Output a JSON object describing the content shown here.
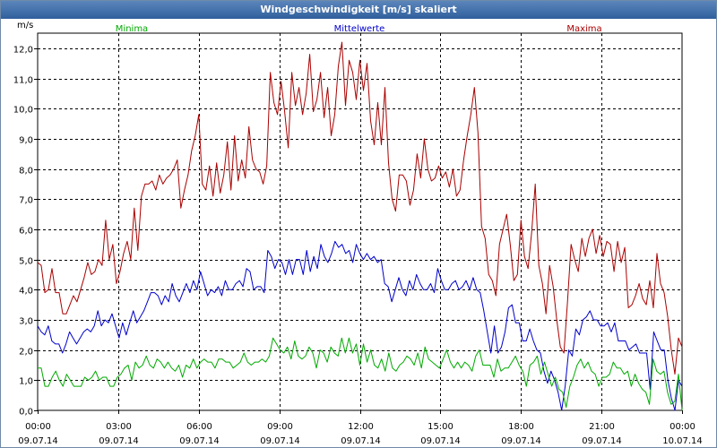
{
  "window": {
    "title": "Windgeschwindigkeit [m/s] skaliert"
  },
  "chart_data": {
    "type": "line",
    "title": "Windgeschwindigkeit [m/s] skaliert",
    "ylabel": "m/s",
    "xlabel": "",
    "ylim": [
      0,
      12.5
    ],
    "yticks": [
      0,
      1,
      2,
      3,
      4,
      5,
      6,
      7,
      8,
      9,
      10,
      11,
      12
    ],
    "ytick_labels": [
      "0,0",
      "1,0",
      "2,0",
      "3,0",
      "4,0",
      "5,0",
      "6,0",
      "7,0",
      "8,0",
      "9,0",
      "10,0",
      "11,0",
      "12,0"
    ],
    "xlim_hours": [
      0,
      24
    ],
    "xticks": [
      {
        "hour": 0,
        "time": "00:00",
        "date": "09.07.14"
      },
      {
        "hour": 3,
        "time": "03:00",
        "date": "09.07.14"
      },
      {
        "hour": 6,
        "time": "06:00",
        "date": "09.07.14"
      },
      {
        "hour": 9,
        "time": "09:00",
        "date": "09.07.14"
      },
      {
        "hour": 12,
        "time": "12:00",
        "date": "09.07.14"
      },
      {
        "hour": 15,
        "time": "15:00",
        "date": "09.07.14"
      },
      {
        "hour": 18,
        "time": "18:00",
        "date": "09.07.14"
      },
      {
        "hour": 21,
        "time": "21:00",
        "date": "09.07.14"
      },
      {
        "hour": 24,
        "time": "00:00",
        "date": "10.07.14"
      }
    ],
    "grid": true,
    "legend": [
      {
        "name": "Minima",
        "color": "#00aa00",
        "position": "top-left"
      },
      {
        "name": "Mittelwerte",
        "color": "#0000cc",
        "position": "top-center"
      },
      {
        "name": "Maxima",
        "color": "#aa0000",
        "position": "top-right"
      }
    ],
    "x_interval_hours": 0.1667,
    "series": [
      {
        "name": "Maxima",
        "color": "#aa0000",
        "values": [
          4.9,
          4.8,
          3.9,
          4.0,
          4.7,
          3.9,
          3.9,
          3.2,
          3.2,
          3.5,
          3.8,
          3.6,
          4.0,
          4.4,
          4.9,
          4.5,
          4.6,
          5.0,
          4.8,
          6.3,
          5.0,
          5.5,
          4.2,
          4.6,
          5.2,
          5.6,
          5.0,
          6.7,
          5.3,
          7.1,
          7.5,
          7.5,
          7.6,
          7.3,
          7.8,
          7.5,
          7.7,
          7.8,
          8.0,
          8.3,
          6.7,
          7.3,
          7.8,
          8.6,
          9.1,
          9.8,
          7.5,
          7.3,
          8.1,
          7.1,
          8.2,
          7.2,
          7.8,
          8.9,
          7.3,
          9.1,
          7.6,
          8.3,
          7.7,
          9.4,
          8.3,
          8.0,
          7.9,
          7.5,
          8.1,
          11.2,
          10.2,
          9.8,
          10.9,
          9.9,
          8.7,
          11.2,
          10.1,
          10.7,
          9.8,
          10.5,
          11.8,
          9.9,
          10.3,
          11.2,
          9.7,
          10.7,
          9.1,
          9.8,
          11.4,
          12.2,
          10.1,
          11.6,
          11.2,
          10.3,
          11.6,
          10.6,
          11.5,
          9.6,
          8.8,
          10.2,
          8.8,
          10.7,
          8.2,
          7.0,
          6.6,
          7.8,
          7.8,
          7.6,
          6.8,
          7.3,
          8.5,
          7.7,
          9.0,
          8.0,
          7.6,
          7.7,
          8.1,
          7.7,
          7.9,
          7.4,
          8.0,
          7.1,
          7.3,
          8.3,
          9.1,
          9.8,
          10.7,
          9.2,
          6.1,
          5.7,
          4.5,
          4.3,
          3.8,
          5.5,
          6.0,
          6.5,
          5.5,
          4.3,
          4.5,
          6.3,
          5.1,
          4.7,
          5.9,
          7.5,
          4.8,
          4.2,
          3.2,
          4.8,
          4.1,
          3.0,
          2.1,
          1.9,
          3.6,
          5.5,
          5.0,
          4.6,
          5.7,
          5.1,
          5.7,
          6.0,
          5.2,
          5.8,
          5.1,
          5.6,
          5.5,
          4.6,
          5.6,
          4.9,
          5.4,
          3.4,
          3.5,
          3.8,
          4.2,
          3.7,
          3.5,
          4.3,
          3.4,
          5.2,
          4.2,
          3.9,
          3.1,
          2.0,
          1.2,
          2.4,
          2.1
        ]
      },
      {
        "name": "Mittelwerte",
        "color": "#0000cc",
        "values": [
          2.8,
          2.6,
          2.5,
          2.8,
          2.3,
          2.2,
          2.2,
          1.9,
          2.2,
          2.6,
          2.4,
          2.2,
          2.4,
          2.6,
          2.7,
          2.6,
          2.8,
          3.3,
          2.8,
          3.0,
          2.9,
          3.2,
          2.8,
          2.4,
          2.9,
          2.5,
          2.9,
          3.3,
          2.9,
          3.1,
          3.3,
          3.6,
          3.9,
          3.9,
          3.8,
          3.5,
          3.8,
          3.6,
          4.2,
          3.8,
          3.6,
          3.9,
          4.2,
          3.9,
          4.3,
          4.0,
          4.6,
          4.2,
          3.8,
          4.0,
          3.9,
          4.1,
          3.8,
          4.3,
          4.0,
          4.0,
          4.2,
          4.3,
          4.1,
          4.7,
          4.6,
          4.0,
          4.1,
          4.1,
          3.9,
          5.3,
          5.1,
          4.7,
          5.0,
          4.9,
          4.5,
          5.0,
          4.5,
          5.0,
          5.0,
          4.5,
          5.3,
          4.6,
          5.1,
          4.7,
          5.5,
          5.1,
          4.9,
          5.2,
          5.6,
          5.4,
          5.5,
          5.2,
          5.3,
          4.9,
          5.5,
          5.2,
          5.0,
          5.2,
          5.0,
          5.1,
          4.9,
          5.0,
          4.2,
          4.1,
          3.6,
          4.0,
          4.4,
          4.0,
          3.8,
          4.3,
          4.0,
          4.5,
          4.2,
          4.0,
          4.0,
          4.2,
          3.9,
          4.7,
          4.3,
          4.0,
          4.0,
          4.2,
          4.3,
          4.0,
          4.1,
          4.3,
          4.0,
          4.4,
          4.0,
          3.9,
          3.3,
          2.6,
          1.9,
          2.8,
          1.9,
          2.1,
          2.6,
          3.4,
          3.5,
          2.9,
          2.9,
          2.3,
          2.3,
          2.7,
          2.3,
          2.0,
          1.9,
          1.3,
          0.9,
          1.3,
          1.0,
          0.6,
          0.0,
          0.8,
          2.0,
          1.8,
          2.7,
          2.5,
          3.0,
          3.1,
          3.3,
          3.0,
          3.0,
          2.8,
          2.8,
          2.9,
          2.6,
          2.9,
          2.3,
          2.3,
          2.3,
          2.0,
          2.1,
          2.2,
          1.9,
          1.9,
          1.9,
          0.7,
          2.6,
          2.3,
          2.0,
          2.0,
          1.0,
          0.4,
          0.0,
          1.0,
          0.8
        ]
      },
      {
        "name": "Minima",
        "color": "#00aa00",
        "values": [
          1.4,
          1.4,
          0.8,
          0.8,
          1.1,
          1.3,
          1.0,
          0.8,
          1.2,
          1.0,
          0.8,
          0.8,
          0.8,
          1.1,
          1.0,
          1.1,
          1.3,
          1.0,
          1.1,
          1.1,
          0.8,
          0.8,
          1.1,
          1.2,
          1.4,
          1.5,
          1.0,
          1.6,
          1.4,
          1.5,
          1.8,
          1.5,
          1.4,
          1.7,
          1.6,
          1.4,
          1.6,
          1.4,
          1.3,
          1.5,
          1.1,
          1.5,
          1.4,
          1.7,
          1.4,
          1.6,
          1.7,
          1.6,
          1.6,
          1.4,
          1.7,
          1.7,
          1.6,
          1.6,
          1.4,
          1.5,
          1.6,
          1.9,
          1.6,
          1.5,
          1.6,
          1.6,
          1.7,
          1.6,
          1.8,
          2.4,
          2.2,
          2.0,
          1.9,
          2.1,
          1.7,
          2.3,
          1.8,
          1.7,
          1.8,
          2.1,
          1.9,
          1.4,
          2.0,
          1.9,
          1.6,
          2.1,
          1.9,
          1.8,
          2.4,
          1.9,
          2.4,
          1.9,
          2.2,
          1.5,
          2.2,
          1.6,
          2.0,
          1.5,
          1.4,
          1.7,
          1.3,
          1.9,
          1.4,
          1.3,
          1.5,
          1.6,
          1.8,
          1.7,
          1.5,
          1.9,
          1.4,
          2.1,
          1.7,
          1.6,
          1.5,
          1.4,
          1.7,
          2.0,
          1.6,
          1.4,
          1.6,
          1.4,
          1.6,
          1.5,
          1.3,
          1.8,
          2.0,
          1.5,
          1.5,
          1.5,
          1.1,
          1.7,
          1.3,
          1.4,
          1.4,
          1.6,
          1.8,
          1.5,
          1.3,
          0.8,
          1.5,
          1.6,
          1.8,
          1.2,
          1.6,
          1.2,
          0.8,
          1.1,
          0.7,
          0.6,
          0.1,
          0.8,
          1.1,
          1.5,
          1.7,
          1.4,
          1.6,
          1.3,
          1.2,
          0.8,
          1.1,
          1.1,
          1.2,
          1.6,
          1.4,
          1.4,
          1.2,
          1.3,
          0.8,
          1.2,
          0.9,
          0.7,
          0.6,
          0.2,
          1.7,
          1.3,
          1.2,
          1.3,
          0.6,
          0.2,
          0.3,
          1.2,
          0.0
        ]
      }
    ]
  }
}
